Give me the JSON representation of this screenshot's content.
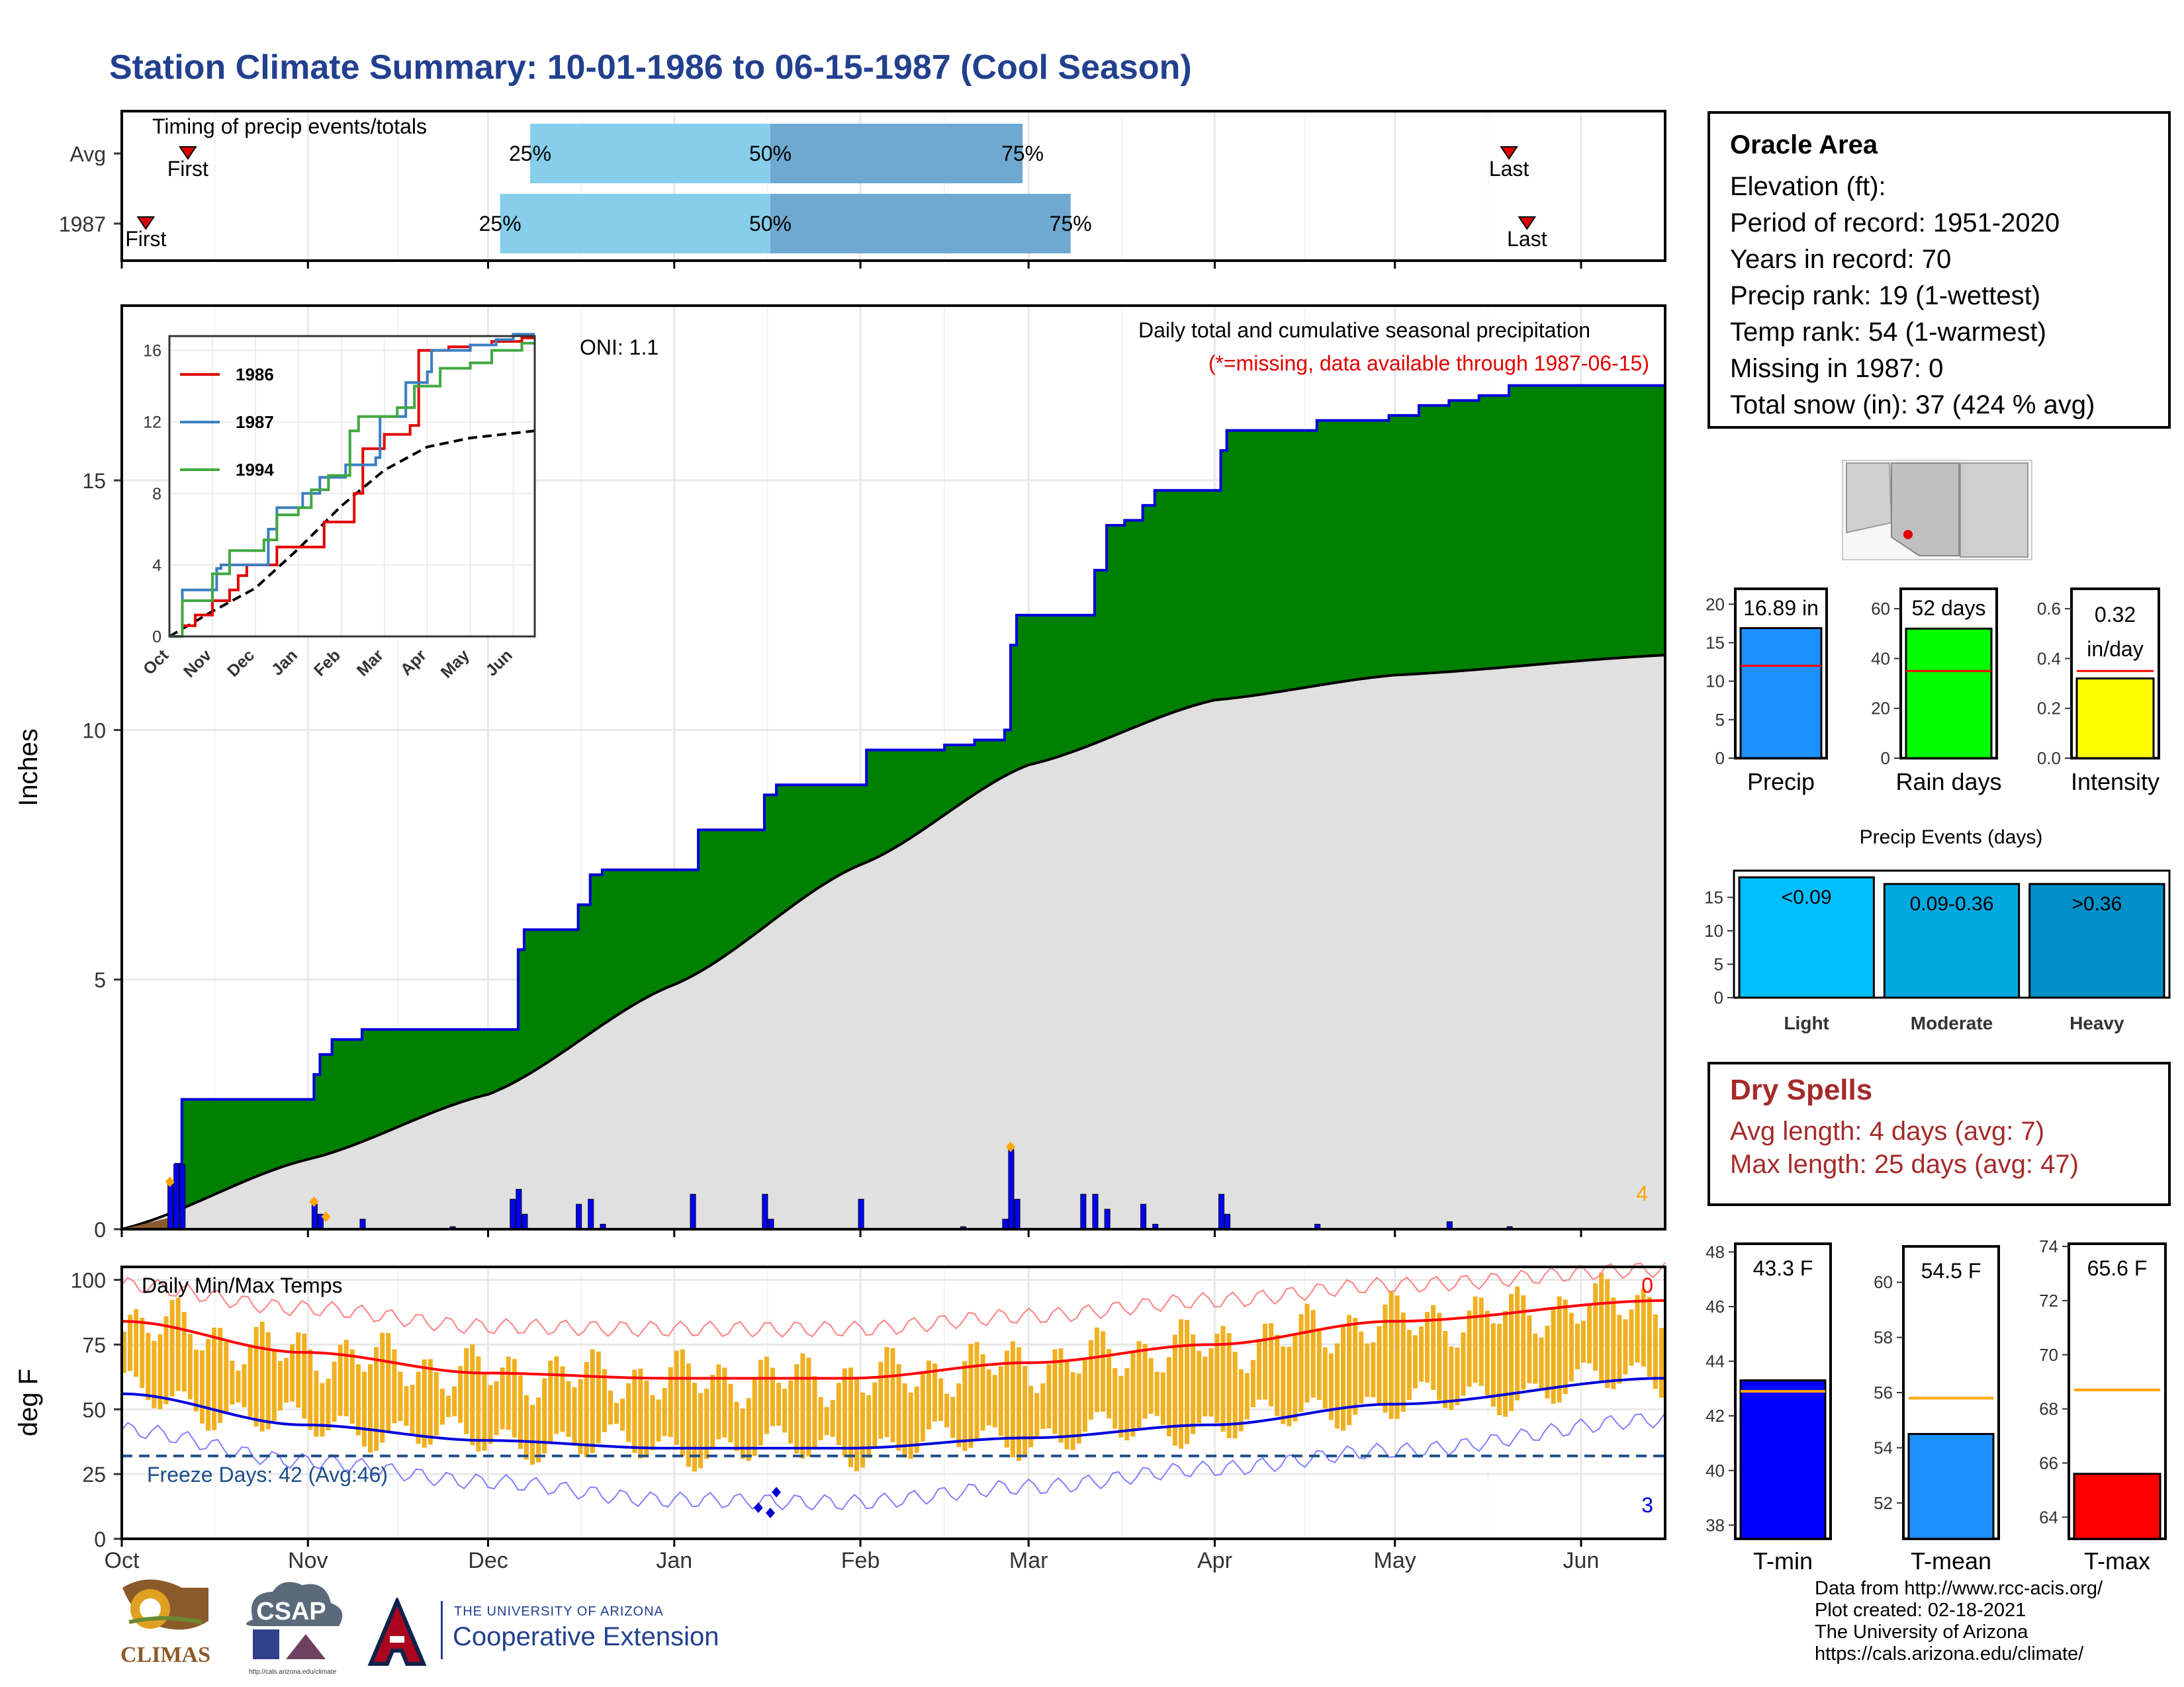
{
  "title": "Station Climate Summary: 10-01-1986 to 06-15-1987 (Cool Season)",
  "station": {
    "name": "Oracle Area",
    "lines": [
      "Elevation (ft):",
      "Period of record: 1951-2020",
      "Years in record: 70",
      "Precip rank: 19 (1-wettest)",
      "Temp rank: 54 (1-warmest)",
      "Missing in 1987: 0",
      "Total snow (in): 37 (424 % avg)"
    ]
  },
  "dry_spells": {
    "title": "Dry Spells",
    "avg": "Avg length: 4 days (avg: 7)",
    "max": "Max length: 25 days (avg: 47)"
  },
  "footer": [
    "Data from http://www.rcc-acis.org/",
    "Plot created: 02-18-2021",
    "The University of Arizona",
    "https://cals.arizona.edu/climate/"
  ],
  "logos": {
    "climas": "CLIMAS",
    "csap": "CSAP",
    "csap_url": "http://cals.arizona.edu/climate",
    "univ": "THE UNIVERSITY OF ARIZONA",
    "coop": "Cooperative Extension"
  },
  "colors": {
    "title": "#23408e",
    "cumulative_fill": "#008000",
    "cumulative_line": "#0000dd",
    "normal_fill": "#e0e0e0",
    "daily_bar": "#0000ff",
    "temp_bar": "#f0b020",
    "tmax_avg": "#ff0000",
    "tmin_avg": "#0000dd",
    "dry_spell": "#a52a2a"
  },
  "chart_data": [
    {
      "type": "bar",
      "name": "timing",
      "title": "Timing of precip events/totals",
      "rows": [
        {
          "label": "Avg",
          "first": "1986-10-12",
          "p25": "1986-12-08",
          "p50": "1987-01-17",
          "p75": "1987-02-28",
          "last": "1987-05-20"
        },
        {
          "label": "1987",
          "first": "1986-10-05",
          "p25": "1986-12-03",
          "p50": "1987-01-17",
          "p75": "1987-03-08",
          "last": "1987-05-23"
        }
      ],
      "labels": {
        "first": "First",
        "last": "Last",
        "p25": "25%",
        "p50": "50%",
        "p75": "75%"
      }
    },
    {
      "type": "area",
      "name": "cumulative_precip",
      "title": "Daily total and cumulative seasonal precipitation",
      "subtitle": "(*=missing, data available through 1987-06-15)",
      "oni": "ONI: 1.1",
      "ylabel": "Inches",
      "ylim": [
        0,
        18.5
      ],
      "yticks": [
        0,
        5,
        10,
        15
      ],
      "x_months": [
        "Oct",
        "Nov",
        "Dec",
        "Jan",
        "Feb",
        "Mar",
        "Apr",
        "May",
        "Jun"
      ],
      "corner_count": "4",
      "cumulative_1987": [
        [
          "1986-10-01",
          0
        ],
        [
          "1986-10-10",
          1.3
        ],
        [
          "1986-10-11",
          2.6
        ],
        [
          "1986-11-01",
          2.6
        ],
        [
          "1986-11-02",
          3.1
        ],
        [
          "1986-11-03",
          3.5
        ],
        [
          "1986-11-05",
          3.8
        ],
        [
          "1986-11-10",
          4.0
        ],
        [
          "1986-12-05",
          4.0
        ],
        [
          "1986-12-06",
          5.6
        ],
        [
          "1986-12-07",
          6.0
        ],
        [
          "1986-12-14",
          6.0
        ],
        [
          "1986-12-16",
          6.5
        ],
        [
          "1986-12-18",
          7.1
        ],
        [
          "1986-12-20",
          7.2
        ],
        [
          "1987-01-04",
          7.2
        ],
        [
          "1987-01-05",
          8.0
        ],
        [
          "1987-01-15",
          8.0
        ],
        [
          "1987-01-16",
          8.7
        ],
        [
          "1987-01-18",
          8.9
        ],
        [
          "1987-02-01",
          8.9
        ],
        [
          "1987-02-02",
          9.6
        ],
        [
          "1987-02-12",
          9.6
        ],
        [
          "1987-02-15",
          9.7
        ],
        [
          "1987-02-20",
          9.8
        ],
        [
          "1987-02-25",
          10.0
        ],
        [
          "1987-02-26",
          11.7
        ],
        [
          "1987-02-27",
          12.3
        ],
        [
          "1987-03-10",
          12.3
        ],
        [
          "1987-03-12",
          13.2
        ],
        [
          "1987-03-14",
          14.1
        ],
        [
          "1987-03-17",
          14.2
        ],
        [
          "1987-03-20",
          14.5
        ],
        [
          "1987-03-22",
          14.8
        ],
        [
          "1987-04-01",
          14.8
        ],
        [
          "1987-04-02",
          15.6
        ],
        [
          "1987-04-03",
          16.0
        ],
        [
          "1987-04-15",
          16.0
        ],
        [
          "1987-04-18",
          16.2
        ],
        [
          "1987-04-30",
          16.3
        ],
        [
          "1987-05-05",
          16.5
        ],
        [
          "1987-05-10",
          16.6
        ],
        [
          "1987-05-15",
          16.7
        ],
        [
          "1987-05-20",
          16.9
        ],
        [
          "1987-06-15",
          16.9
        ]
      ],
      "normal_cumulative": [
        [
          "1986-10-01",
          0
        ],
        [
          "1986-11-01",
          1.4
        ],
        [
          "1986-12-01",
          2.7
        ],
        [
          "1987-01-01",
          4.9
        ],
        [
          "1987-02-01",
          7.3
        ],
        [
          "1987-03-01",
          9.3
        ],
        [
          "1987-04-01",
          10.6
        ],
        [
          "1987-05-01",
          11.1
        ],
        [
          "1987-06-15",
          11.5
        ]
      ],
      "daily_events": [
        [
          "1986-10-09",
          0.9
        ],
        [
          "1986-10-10",
          1.3
        ],
        [
          "1986-10-11",
          1.3
        ],
        [
          "1986-11-02",
          0.5
        ],
        [
          "1986-11-03",
          0.3
        ],
        [
          "1986-11-10",
          0.2
        ],
        [
          "1986-11-25",
          0.05
        ],
        [
          "1986-12-05",
          0.6
        ],
        [
          "1986-12-06",
          0.8
        ],
        [
          "1986-12-07",
          0.3
        ],
        [
          "1986-12-16",
          0.5
        ],
        [
          "1986-12-18",
          0.6
        ],
        [
          "1986-12-20",
          0.1
        ],
        [
          "1987-01-04",
          0.7
        ],
        [
          "1987-01-16",
          0.7
        ],
        [
          "1987-01-17",
          0.2
        ],
        [
          "1987-02-01",
          0.6
        ],
        [
          "1987-02-18",
          0.05
        ],
        [
          "1987-02-25",
          0.2
        ],
        [
          "1987-02-26",
          1.6
        ],
        [
          "1987-02-27",
          0.6
        ],
        [
          "1987-03-10",
          0.7
        ],
        [
          "1987-03-12",
          0.7
        ],
        [
          "1987-03-14",
          0.4
        ],
        [
          "1987-03-20",
          0.5
        ],
        [
          "1987-03-22",
          0.1
        ],
        [
          "1987-04-02",
          0.7
        ],
        [
          "1987-04-03",
          0.3
        ],
        [
          "1987-04-18",
          0.1
        ],
        [
          "1987-05-10",
          0.15
        ],
        [
          "1987-05-20",
          0.05
        ]
      ],
      "inset": {
        "type": "line",
        "yticks": [
          0,
          4,
          8,
          12,
          16
        ],
        "ylim": [
          0,
          16.8
        ],
        "x_months": [
          "Oct",
          "Nov",
          "Dec",
          "Jan",
          "Feb",
          "Mar",
          "Apr",
          "May",
          "Jun"
        ],
        "series": [
          {
            "name": "1986",
            "color": "#e00000",
            "points": [
              [
                0,
                0
              ],
              [
                0.3,
                0.6
              ],
              [
                0.6,
                1.2
              ],
              [
                1.0,
                2.0
              ],
              [
                1.4,
                2.6
              ],
              [
                1.6,
                3.4
              ],
              [
                1.8,
                4.0
              ],
              [
                2.4,
                4.0
              ],
              [
                2.5,
                5.0
              ],
              [
                3.0,
                5.0
              ],
              [
                3.4,
                5.0
              ],
              [
                3.6,
                6.4
              ],
              [
                4.2,
                6.4
              ],
              [
                4.3,
                8.0
              ],
              [
                4.5,
                10.5
              ],
              [
                5.0,
                11.3
              ],
              [
                5.6,
                11.8
              ],
              [
                5.8,
                16.0
              ],
              [
                6.5,
                16.2
              ],
              [
                7.0,
                16.3
              ],
              [
                7.5,
                16.5
              ],
              [
                8.0,
                16.5
              ],
              [
                8.2,
                16.7
              ],
              [
                8.5,
                16.7
              ]
            ]
          },
          {
            "name": "1987",
            "color": "#3a7fc0",
            "points": [
              [
                0,
                0
              ],
              [
                0.3,
                2.6
              ],
              [
                1.0,
                2.6
              ],
              [
                1.1,
                3.8
              ],
              [
                1.2,
                4.0
              ],
              [
                2.2,
                4.0
              ],
              [
                2.3,
                6.0
              ],
              [
                2.5,
                7.2
              ],
              [
                3.0,
                7.2
              ],
              [
                3.1,
                8.0
              ],
              [
                3.5,
                8.9
              ],
              [
                4.0,
                8.9
              ],
              [
                4.1,
                9.6
              ],
              [
                4.8,
                10.0
              ],
              [
                4.9,
                12.3
              ],
              [
                5.4,
                12.3
              ],
              [
                5.5,
                14.2
              ],
              [
                6.0,
                14.8
              ],
              [
                6.1,
                16.0
              ],
              [
                6.6,
                16.0
              ],
              [
                7.0,
                16.3
              ],
              [
                7.6,
                16.6
              ],
              [
                8.0,
                16.9
              ],
              [
                8.5,
                16.9
              ]
            ]
          },
          {
            "name": "1994",
            "color": "#40a840",
            "points": [
              [
                0,
                0
              ],
              [
                0.3,
                2.0
              ],
              [
                1.0,
                3.5
              ],
              [
                1.4,
                4.8
              ],
              [
                2.2,
                5.4
              ],
              [
                2.5,
                6.8
              ],
              [
                3.0,
                7.2
              ],
              [
                3.3,
                8.2
              ],
              [
                3.7,
                9.0
              ],
              [
                4.0,
                9.0
              ],
              [
                4.2,
                11.5
              ],
              [
                4.4,
                12.3
              ],
              [
                5.0,
                12.3
              ],
              [
                5.3,
                12.8
              ],
              [
                5.7,
                14.0
              ],
              [
                6.3,
                15.0
              ],
              [
                7.0,
                15.3
              ],
              [
                7.5,
                16.0
              ],
              [
                8.0,
                16.0
              ],
              [
                8.2,
                16.4
              ],
              [
                8.5,
                16.4
              ]
            ]
          }
        ],
        "normal": [
          [
            0,
            0
          ],
          [
            1,
            1.4
          ],
          [
            2,
            2.7
          ],
          [
            3,
            4.9
          ],
          [
            4,
            7.3
          ],
          [
            5,
            9.3
          ],
          [
            6,
            10.6
          ],
          [
            7,
            11.1
          ],
          [
            8.5,
            11.5
          ]
        ]
      }
    },
    {
      "type": "bar",
      "name": "daily_temps",
      "title": "Daily Min/Max Temps",
      "ylabel": "deg F",
      "ylim": [
        0,
        105
      ],
      "yticks": [
        0,
        25,
        50,
        75,
        100
      ],
      "x_months": [
        "Oct",
        "Nov",
        "Dec",
        "Jan",
        "Feb",
        "Mar",
        "Apr",
        "May",
        "Jun"
      ],
      "freeze_line": 32,
      "freeze_label": "Freeze Days: 42 (Avg:46)",
      "corner_top": "0",
      "corner_bottom": "3",
      "tmax_avg_curve": [
        [
          0,
          84
        ],
        [
          1,
          72
        ],
        [
          2,
          64
        ],
        [
          3,
          62
        ],
        [
          4,
          62
        ],
        [
          5,
          68
        ],
        [
          6,
          75
        ],
        [
          7,
          84
        ],
        [
          8.5,
          92
        ]
      ],
      "tmin_avg_curve": [
        [
          0,
          56
        ],
        [
          1,
          44
        ],
        [
          2,
          38
        ],
        [
          3,
          35
        ],
        [
          4,
          35
        ],
        [
          5,
          39
        ],
        [
          6,
          44
        ],
        [
          7,
          52
        ],
        [
          8.5,
          62
        ]
      ],
      "tmax_record_curve": [
        [
          0,
          98
        ],
        [
          1,
          89
        ],
        [
          2,
          82
        ],
        [
          3,
          81
        ],
        [
          4,
          81
        ],
        [
          5,
          86
        ],
        [
          6,
          92
        ],
        [
          7,
          98
        ],
        [
          8.5,
          104
        ]
      ],
      "tmin_record_curve": [
        [
          0,
          42
        ],
        [
          1,
          30
        ],
        [
          2,
          22
        ],
        [
          3,
          15
        ],
        [
          4,
          14
        ],
        [
          5,
          20
        ],
        [
          6,
          27
        ],
        [
          7,
          34
        ],
        [
          8.5,
          46
        ]
      ]
    },
    {
      "type": "bar",
      "name": "precip_summary",
      "panels": [
        {
          "label": "Precip",
          "value": 16.89,
          "avg": 12.0,
          "text": "16.89 in",
          "ylim": [
            0,
            22
          ],
          "yticks": [
            0,
            5,
            10,
            15,
            20
          ],
          "color": "#1e90ff"
        },
        {
          "label": "Rain days",
          "value": 52,
          "avg": 35,
          "text": "52 days",
          "ylim": [
            0,
            68
          ],
          "yticks": [
            0,
            20,
            40,
            60
          ],
          "color": "#00ff00"
        },
        {
          "label": "Intensity",
          "value": 0.32,
          "avg": 0.35,
          "text": "0.32 in/day",
          "ylim": [
            0,
            0.68
          ],
          "yticks": [
            0.0,
            0.2,
            0.4,
            0.6
          ],
          "color": "#ffff00"
        }
      ]
    },
    {
      "type": "bar",
      "name": "precip_events",
      "title": "Precip Events (days)",
      "categories": [
        "Light",
        "Moderate",
        "Heavy"
      ],
      "bins": [
        "<0.09",
        "0.09-0.36",
        ">0.36"
      ],
      "values": [
        18,
        17,
        17
      ],
      "ylim": [
        0,
        19
      ],
      "yticks": [
        0,
        5,
        10,
        15
      ],
      "colors": [
        "#00bfff",
        "#00a8e0",
        "#0090c8"
      ]
    },
    {
      "type": "bar",
      "name": "temp_summary",
      "panels": [
        {
          "label": "T-min",
          "value": 43.3,
          "avg": 42.9,
          "text": "43.3 F",
          "ylim": [
            37.5,
            48.3
          ],
          "yticks": [
            38,
            40,
            42,
            44,
            46,
            48
          ],
          "color": "#0000ff"
        },
        {
          "label": "T-mean",
          "value": 54.5,
          "avg": 55.8,
          "text": "54.5 F",
          "ylim": [
            50.7,
            61.3
          ],
          "yticks": [
            52,
            54,
            56,
            58,
            60
          ],
          "color": "#1e90ff"
        },
        {
          "label": "T-max",
          "value": 65.6,
          "avg": 68.7,
          "text": "65.6 F",
          "ylim": [
            63.2,
            74.1
          ],
          "yticks": [
            64,
            66,
            68,
            70,
            72,
            74
          ],
          "color": "#ff0000"
        }
      ]
    }
  ]
}
